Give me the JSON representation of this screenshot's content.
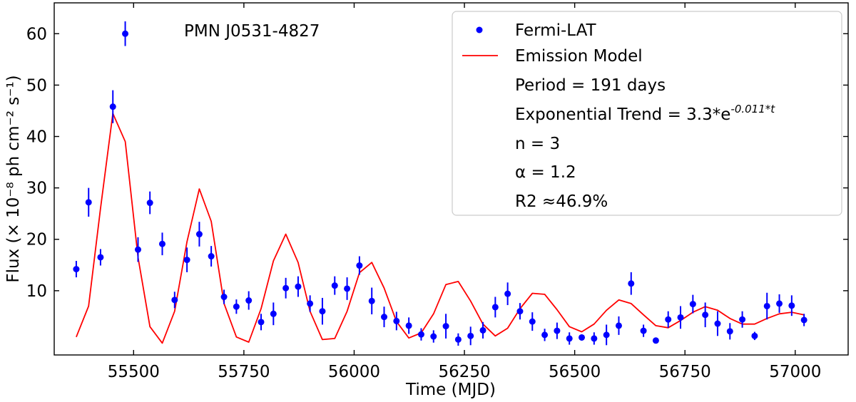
{
  "chart_data": {
    "type": "scatter",
    "title": "",
    "annotation": "PMN J0531-4827",
    "xlabel": "Time (MJD)",
    "ylabel": "Flux (× 10⁻⁸ ph cm⁻² s⁻¹)",
    "xlim": [
      55320,
      57120
    ],
    "ylim": [
      -2.5,
      66
    ],
    "xticks": [
      55500,
      55750,
      56000,
      56250,
      56500,
      56750,
      57000
    ],
    "yticks": [
      10,
      20,
      30,
      40,
      50,
      60
    ],
    "legend": {
      "placement": "top-right",
      "entries": [
        "Fermi-LAT",
        "Emission Model"
      ],
      "info": [
        "Period = 191 days",
        "Exponential Trend = 3.3*e^{-0.011*t}",
        "n = 3",
        "α = 1.2",
        "R2 ≈46.9%"
      ]
    },
    "colors": {
      "data": "#0000ff",
      "model": "#ff0000"
    },
    "series": [
      {
        "name": "Fermi-LAT",
        "kind": "errorbar",
        "x": [
          55370,
          55398,
          55425,
          55453,
          55481,
          55510,
          55537,
          55565,
          55593,
          55621,
          55649,
          55676,
          55705,
          55733,
          55761,
          55789,
          55817,
          55845,
          55873,
          55900,
          55928,
          55956,
          55984,
          56012,
          56040,
          56068,
          56096,
          56124,
          56152,
          56180,
          56208,
          56236,
          56264,
          56292,
          56320,
          56348,
          56376,
          56404,
          56432,
          56460,
          56488,
          56516,
          56544,
          56572,
          56600,
          56628,
          56656,
          56684,
          56712,
          56740,
          56768,
          56796,
          56824,
          56852,
          56880,
          56908,
          56936,
          56964,
          56992,
          57020
        ],
        "y": [
          14.2,
          27.2,
          16.5,
          45.8,
          60.0,
          18.0,
          27.1,
          19.1,
          8.2,
          16.0,
          21.0,
          16.7,
          8.8,
          6.9,
          8.1,
          3.9,
          5.5,
          10.5,
          10.8,
          7.5,
          6.0,
          11.0,
          10.4,
          14.9,
          8.0,
          4.9,
          4.1,
          3.2,
          1.5,
          1.1,
          3.1,
          0.5,
          1.2,
          2.3,
          6.8,
          9.4,
          6.0,
          4.0,
          1.4,
          2.2,
          0.7,
          0.9,
          0.7,
          1.4,
          3.2,
          11.4,
          2.2,
          0.3,
          4.4,
          4.8,
          7.4,
          5.3,
          3.6,
          2.1,
          4.4,
          1.2,
          7.0,
          7.5,
          7.1,
          4.3
        ],
        "yerr": [
          1.6,
          2.8,
          1.6,
          3.2,
          2.4,
          2.4,
          2.2,
          2.2,
          1.6,
          2.4,
          2.4,
          2.0,
          1.4,
          1.4,
          1.8,
          1.6,
          2.2,
          2.0,
          2.0,
          1.6,
          2.6,
          1.8,
          2.2,
          1.8,
          2.6,
          2.0,
          1.8,
          1.6,
          1.2,
          1.2,
          2.4,
          1.2,
          1.8,
          1.6,
          2.0,
          2.2,
          1.6,
          1.8,
          1.2,
          1.6,
          1.2,
          0.6,
          1.2,
          2.0,
          1.8,
          2.2,
          1.2,
          0.5,
          1.6,
          2.2,
          1.8,
          2.4,
          2.4,
          1.6,
          1.6,
          0.8,
          2.6,
          1.8,
          2.0,
          1.2
        ]
      },
      {
        "name": "Emission Model",
        "kind": "line",
        "x": [
          55370,
          55398,
          55425,
          55453,
          55481,
          55510,
          55537,
          55565,
          55593,
          55621,
          55649,
          55676,
          55705,
          55733,
          55761,
          55789,
          55817,
          55845,
          55873,
          55900,
          55928,
          55956,
          55984,
          56012,
          56040,
          56068,
          56096,
          56124,
          56152,
          56180,
          56208,
          56236,
          56264,
          56292,
          56320,
          56348,
          56376,
          56404,
          56432,
          56460,
          56488,
          56516,
          56544,
          56572,
          56600,
          56628,
          56656,
          56684,
          56712,
          56740,
          56768,
          56796,
          56824,
          56852,
          56880,
          56908,
          56936,
          56964,
          56992,
          57020
        ],
        "y": [
          1.0,
          7.0,
          26.0,
          44.5,
          39.0,
          16.5,
          3.0,
          -0.2,
          6.0,
          19.5,
          29.8,
          23.5,
          7.5,
          1.0,
          0.0,
          6.5,
          15.8,
          21.0,
          15.5,
          6.0,
          0.5,
          0.7,
          6.0,
          13.5,
          15.5,
          10.5,
          4.0,
          0.8,
          1.8,
          5.5,
          11.2,
          11.8,
          8.0,
          3.5,
          1.2,
          2.7,
          6.5,
          9.5,
          9.3,
          6.3,
          3.0,
          2.0,
          3.5,
          6.2,
          8.2,
          7.5,
          5.3,
          3.2,
          2.8,
          4.2,
          5.8,
          6.9,
          6.2,
          4.6,
          3.5,
          3.5,
          4.6,
          5.5,
          5.8,
          5.3
        ]
      }
    ]
  }
}
